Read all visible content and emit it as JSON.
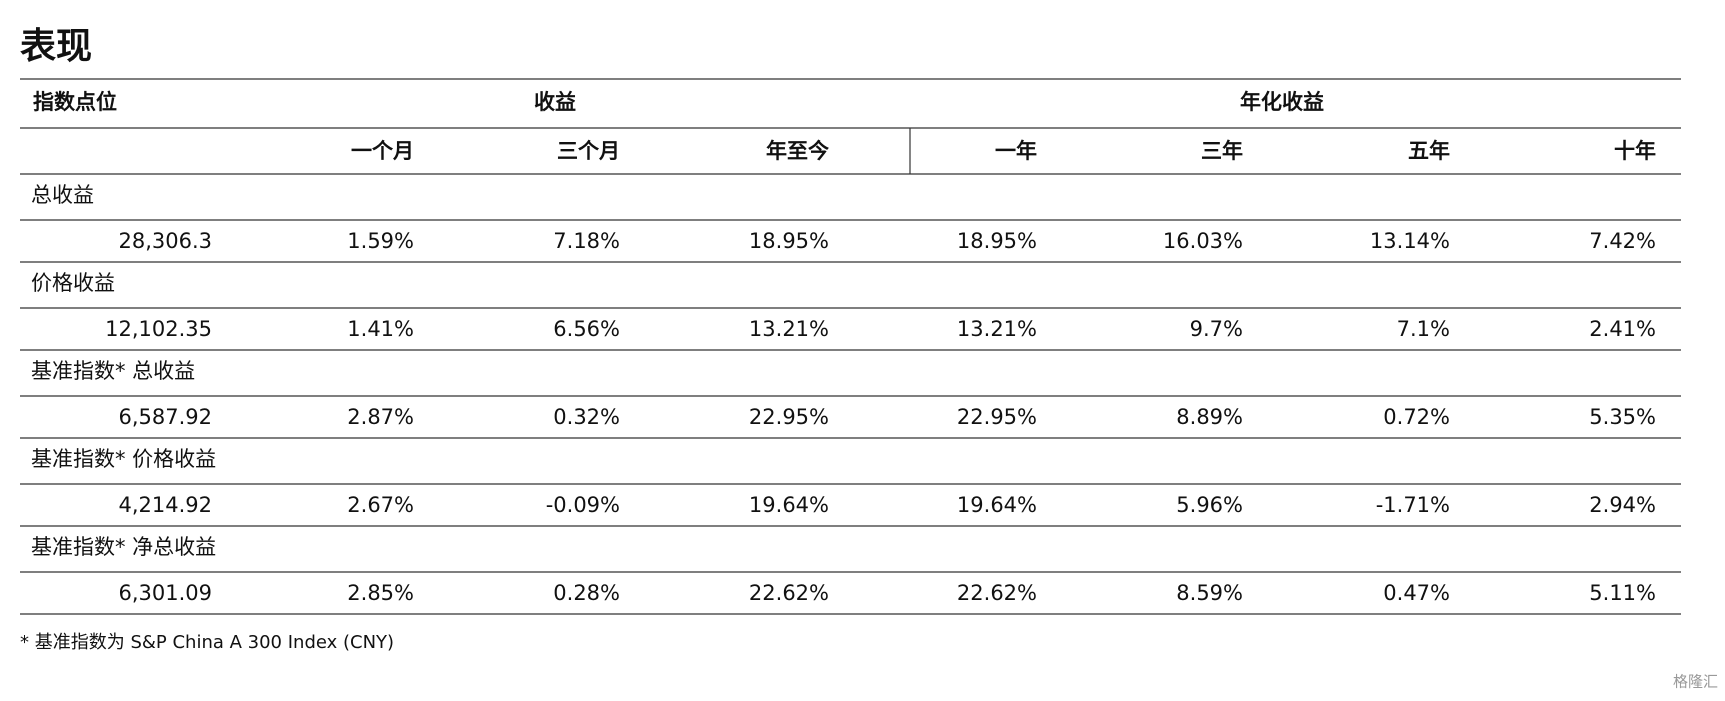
{
  "title": "表现",
  "table": {
    "header_groups": [
      "指数点位",
      "收益",
      "年化收益"
    ],
    "columns": [
      "一个月",
      "三个月",
      "年至今",
      "一年",
      "三年",
      "五年",
      "十年"
    ],
    "sections": [
      {
        "label": "总收益",
        "values": [
          "28,306.3",
          "1.59%",
          "7.18%",
          "18.95%",
          "18.95%",
          "16.03%",
          "13.14%",
          "7.42%"
        ]
      },
      {
        "label": "价格收益",
        "values": [
          "12,102.35",
          "1.41%",
          "6.56%",
          "13.21%",
          "13.21%",
          "9.7%",
          "7.1%",
          "2.41%"
        ]
      },
      {
        "label": "基准指数* 总收益",
        "values": [
          "6,587.92",
          "2.87%",
          "0.32%",
          "22.95%",
          "22.95%",
          "8.89%",
          "0.72%",
          "5.35%"
        ]
      },
      {
        "label": "基准指数* 价格收益",
        "values": [
          "4,214.92",
          "2.67%",
          "-0.09%",
          "19.64%",
          "19.64%",
          "5.96%",
          "-1.71%",
          "2.94%"
        ]
      },
      {
        "label": "基准指数* 净总收益",
        "values": [
          "6,301.09",
          "2.85%",
          "0.28%",
          "22.62%",
          "22.62%",
          "8.59%",
          "0.47%",
          "5.11%"
        ]
      }
    ]
  },
  "footnote": "* 基准指数为 S&P China A 300 Index (CNY)",
  "watermark": "格隆汇"
}
